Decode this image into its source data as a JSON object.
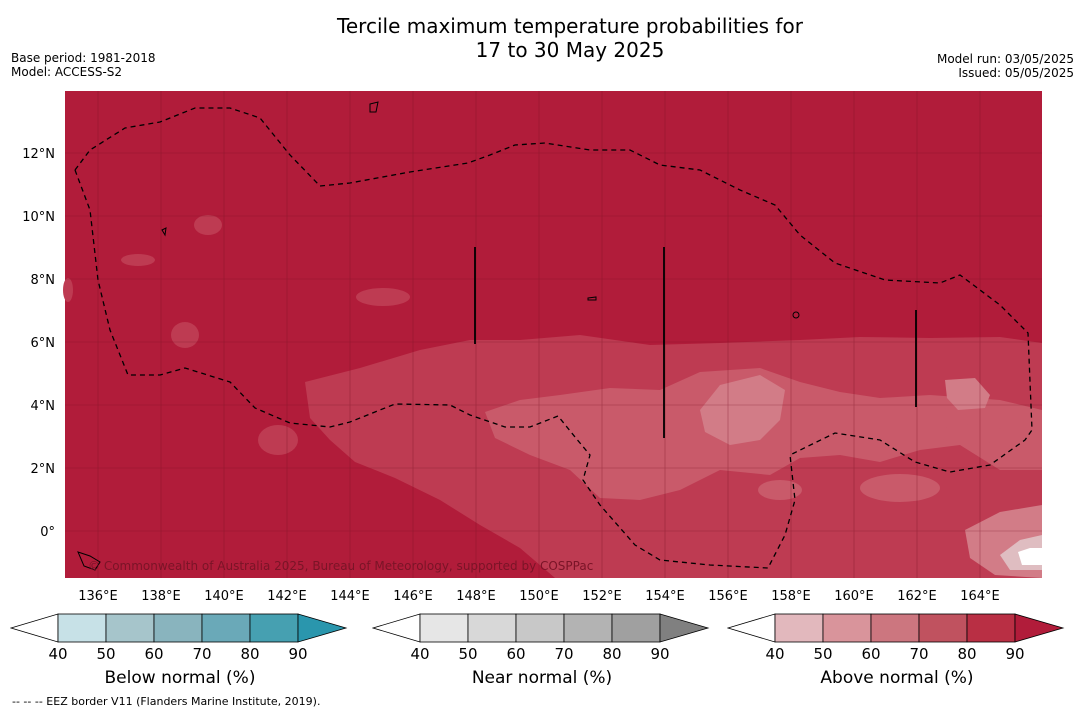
{
  "title_line1": "Tercile maximum temperature probabilities for",
  "title_line2": "17 to 30 May 2025",
  "meta": {
    "base_period": "Base period: 1981-2018",
    "model": "Model: ACCESS-S2",
    "model_run": "Model run: 03/05/2025",
    "issued": "Issued: 05/05/2025"
  },
  "map": {
    "lon_ticks": [
      "136°E",
      "138°E",
      "140°E",
      "142°E",
      "144°E",
      "146°E",
      "148°E",
      "150°E",
      "152°E",
      "154°E",
      "156°E",
      "158°E",
      "160°E",
      "162°E",
      "164°E"
    ],
    "lat_ticks": [
      "12°N",
      "10°N",
      "8°N",
      "6°N",
      "4°N",
      "2°N",
      "0°"
    ],
    "copyright": "© Commonwealth of Australia 2025, Bureau of Meteorology, supported by COSPPac",
    "colors": {
      "p90": "#b11c3a",
      "p80": "#be3b52",
      "p70": "#c95a6a",
      "p60": "#d27c87",
      "p50": "#dfbdc1"
    }
  },
  "colorbars": [
    {
      "label": "Below normal (%)",
      "ticks": [
        "40",
        "50",
        "60",
        "70",
        "80",
        "90"
      ],
      "colors": [
        "#ffffff",
        "#c7e1e7",
        "#a6c5cb",
        "#89b4be",
        "#6aa9b8",
        "#46a0b1",
        "#2a96ad"
      ]
    },
    {
      "label": "Near normal (%)",
      "ticks": [
        "40",
        "50",
        "60",
        "70",
        "80",
        "90"
      ],
      "colors": [
        "#ffffff",
        "#e6e6e6",
        "#d8d8d8",
        "#c8c8c8",
        "#b3b3b3",
        "#a0a0a0",
        "#808080"
      ]
    },
    {
      "label": "Above normal (%)",
      "ticks": [
        "40",
        "50",
        "60",
        "70",
        "80",
        "90"
      ],
      "colors": [
        "#ffffff",
        "#e2b8bd",
        "#d9949b",
        "#cc767f",
        "#c0525f",
        "#b92f44",
        "#b11c3a"
      ]
    }
  ],
  "footnote": "--  --  -- EEZ border V11 (Flanders Marine Institute, 2019)."
}
